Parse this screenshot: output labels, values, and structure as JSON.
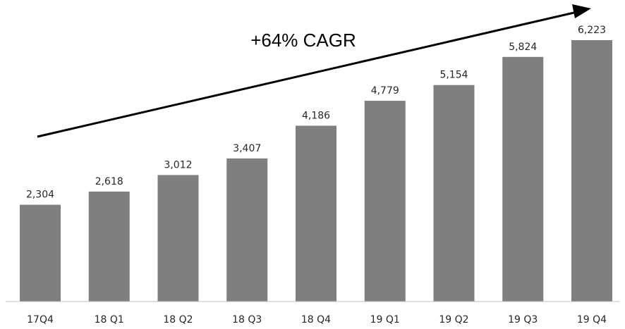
{
  "chart_data": {
    "type": "bar",
    "categories": [
      "17Q4",
      "18 Q1",
      "18 Q2",
      "18 Q3",
      "18 Q4",
      "19 Q1",
      "19 Q2",
      "19 Q3",
      "19 Q4"
    ],
    "values": [
      2304,
      2618,
      3012,
      3407,
      4186,
      4779,
      5154,
      5824,
      6223
    ],
    "value_labels": [
      "2,304",
      "2,618",
      "3,012",
      "3,407",
      "4,186",
      "4,779",
      "5,154",
      "5,824",
      "6,223"
    ],
    "annotation": "+64% CAGR",
    "ylim": [
      0,
      6223
    ],
    "grid": false,
    "colors": {
      "bar": "#7f7f7f",
      "arrow": "#000000",
      "axis": "#bfbfbf",
      "label": "#262626"
    }
  }
}
